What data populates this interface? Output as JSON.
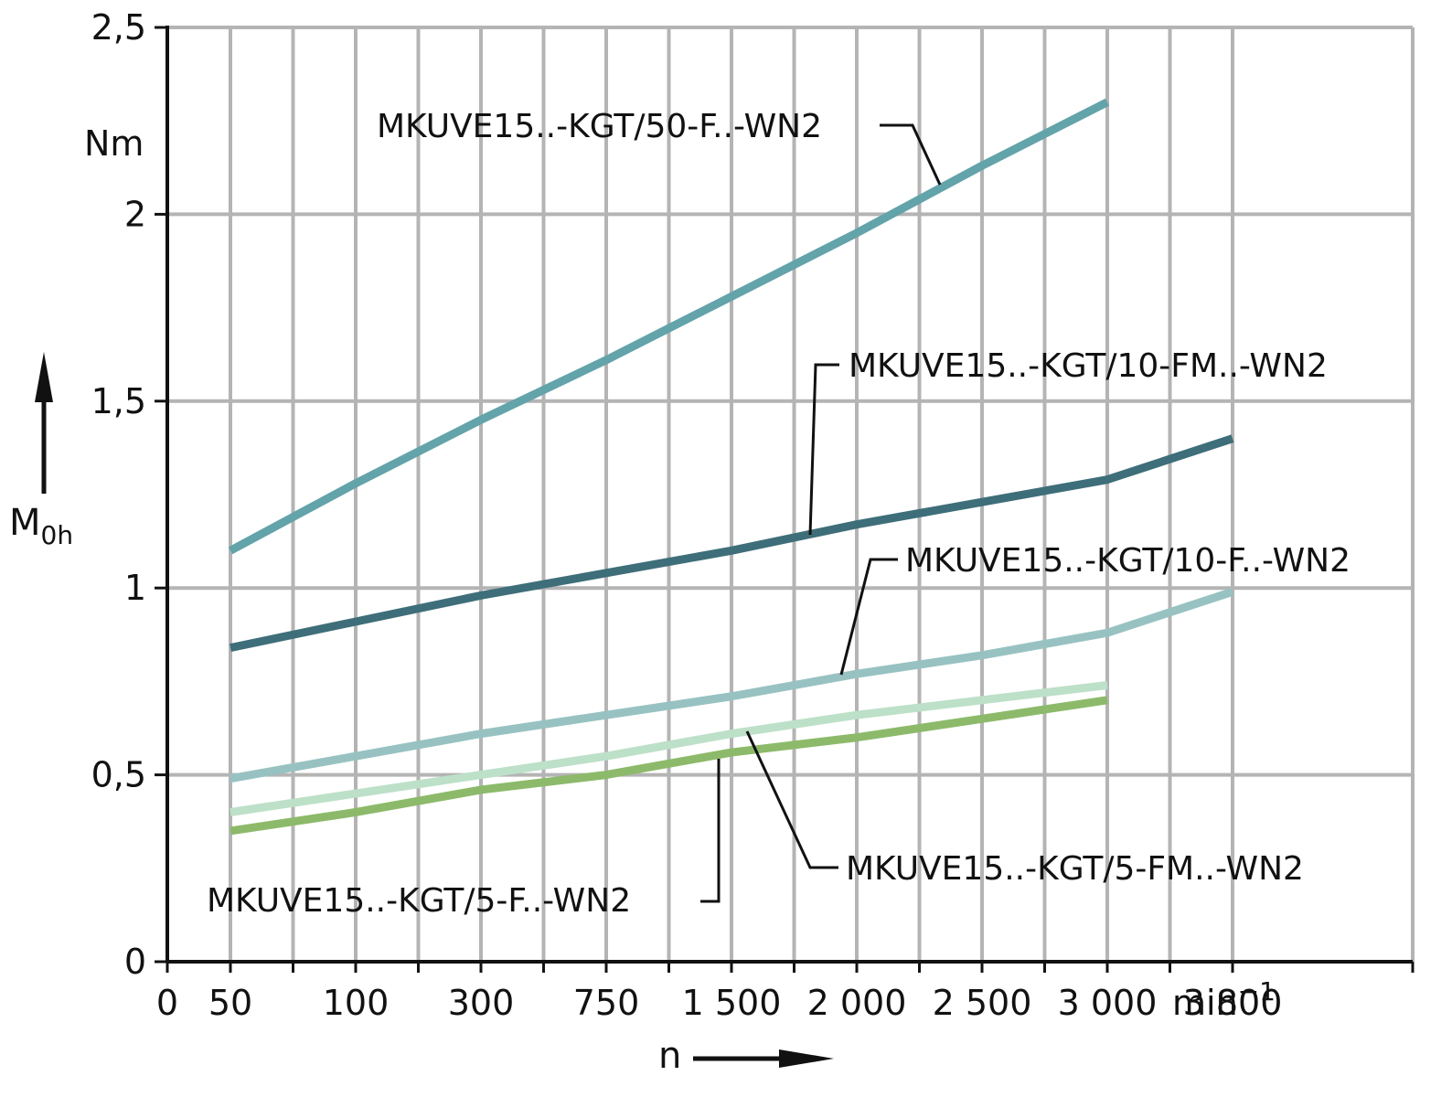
{
  "chart_data": {
    "type": "line",
    "title": "",
    "ylabel_main": "M",
    "ylabel_sub": "0h",
    "yunit": "Nm",
    "xlabel": "n",
    "xunit_base": "min",
    "xunit_exp": "−1",
    "ylim": [
      0,
      2.5
    ],
    "y_ticks": [
      {
        "value": 0,
        "label": "0"
      },
      {
        "value": 0.5,
        "label": "0,5"
      },
      {
        "value": 1,
        "label": "1"
      },
      {
        "value": 1.5,
        "label": "1,5"
      },
      {
        "value": 2,
        "label": "2"
      },
      {
        "value": 2.5,
        "label": "2,5"
      }
    ],
    "x_categories": [
      "0",
      "50",
      "100",
      "300",
      "750",
      "1 500",
      "2 000",
      "2 500",
      "3 000",
      "3 800"
    ],
    "grid": true,
    "colors": {
      "kgt50": "#63a3aa",
      "kgt10fm": "#3e6e79",
      "kgt10f": "#98c2c2",
      "kgt5fm": "#bde0c8",
      "kgt5f": "#8cba6a",
      "grid": "#b4b4b4",
      "axis": "#111111"
    },
    "series": [
      {
        "name": "MKUVE15..-KGT/50-F..-WN2",
        "color_key": "kgt50",
        "points": [
          {
            "x": "50",
            "y": 1.1
          },
          {
            "x": "100",
            "y": 1.28
          },
          {
            "x": "300",
            "y": 1.45
          },
          {
            "x": "750",
            "y": 1.61
          },
          {
            "x": "1 500",
            "y": 1.78
          },
          {
            "x": "2 000",
            "y": 1.95
          },
          {
            "x": "2 500",
            "y": 2.13
          },
          {
            "x": "3 000",
            "y": 2.3
          }
        ]
      },
      {
        "name": "MKUVE15..-KGT/10-FM..-WN2",
        "color_key": "kgt10fm",
        "points": [
          {
            "x": "50",
            "y": 0.84
          },
          {
            "x": "100",
            "y": 0.91
          },
          {
            "x": "300",
            "y": 0.98
          },
          {
            "x": "750",
            "y": 1.04
          },
          {
            "x": "1 500",
            "y": 1.1
          },
          {
            "x": "2 000",
            "y": 1.17
          },
          {
            "x": "2 500",
            "y": 1.23
          },
          {
            "x": "3 000",
            "y": 1.29
          },
          {
            "x": "3 800",
            "y": 1.4
          }
        ]
      },
      {
        "name": "MKUVE15..-KGT/10-F..-WN2",
        "color_key": "kgt10f",
        "points": [
          {
            "x": "50",
            "y": 0.49
          },
          {
            "x": "100",
            "y": 0.55
          },
          {
            "x": "300",
            "y": 0.61
          },
          {
            "x": "750",
            "y": 0.66
          },
          {
            "x": "1 500",
            "y": 0.71
          },
          {
            "x": "2 000",
            "y": 0.77
          },
          {
            "x": "2 500",
            "y": 0.82
          },
          {
            "x": "3 000",
            "y": 0.88
          },
          {
            "x": "3 800",
            "y": 0.99
          }
        ]
      },
      {
        "name": "MKUVE15..-KGT/5-FM..-WN2",
        "color_key": "kgt5fm",
        "points": [
          {
            "x": "50",
            "y": 0.4
          },
          {
            "x": "100",
            "y": 0.45
          },
          {
            "x": "300",
            "y": 0.5
          },
          {
            "x": "750",
            "y": 0.55
          },
          {
            "x": "1 500",
            "y": 0.61
          },
          {
            "x": "2 000",
            "y": 0.66
          },
          {
            "x": "2 500",
            "y": 0.7
          },
          {
            "x": "3 000",
            "y": 0.74
          }
        ]
      },
      {
        "name": "MKUVE15..-KGT/5-F..-WN2",
        "color_key": "kgt5f",
        "points": [
          {
            "x": "50",
            "y": 0.35
          },
          {
            "x": "100",
            "y": 0.4
          },
          {
            "x": "300",
            "y": 0.46
          },
          {
            "x": "750",
            "y": 0.5
          },
          {
            "x": "1 500",
            "y": 0.56
          },
          {
            "x": "2 000",
            "y": 0.6
          },
          {
            "x": "2 500",
            "y": 0.65
          },
          {
            "x": "3 000",
            "y": 0.7
          }
        ]
      }
    ]
  }
}
